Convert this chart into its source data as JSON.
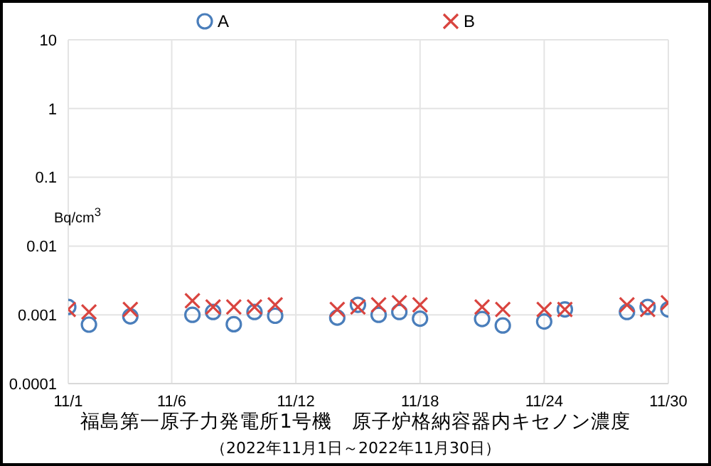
{
  "chart_data": {
    "type": "scatter",
    "title": "福島第一原子力発電所1号機　原子炉格納容器内キセノン濃度",
    "subtitle": "（2022年11月1日～2022年11月30日）",
    "ylabel": "Bq/cm$^{3}$",
    "x": [
      "2022-11-01",
      "2022-11-02",
      "2022-11-04",
      "2022-11-07",
      "2022-11-08",
      "2022-11-09",
      "2022-11-10",
      "2022-11-11",
      "2022-11-14",
      "2022-11-15",
      "2022-11-16",
      "2022-11-17",
      "2022-11-18",
      "2022-11-21",
      "2022-11-22",
      "2022-11-24",
      "2022-11-25",
      "2022-11-28",
      "2022-11-29",
      "2022-11-30"
    ],
    "series": [
      {
        "name": "A",
        "color": "#4a7ebb",
        "marker": "circle",
        "values": [
          0.0013,
          0.00072,
          0.00095,
          0.001,
          0.0011,
          0.00073,
          0.0011,
          0.00097,
          0.00091,
          0.0014,
          0.001,
          0.0011,
          0.00088,
          0.00087,
          0.0007,
          0.0008,
          0.0012,
          0.0011,
          0.0013,
          0.0012
        ]
      },
      {
        "name": "B",
        "color": "#d9443f",
        "marker": "cross",
        "values": [
          0.0012,
          0.0011,
          0.0012,
          0.0016,
          0.0013,
          0.0013,
          0.0013,
          0.0014,
          0.0012,
          0.0013,
          0.0014,
          0.0015,
          0.0014,
          0.0013,
          0.0012,
          0.0012,
          0.0012,
          0.0014,
          0.0012,
          0.0015
        ]
      }
    ],
    "log": "y",
    "ylim": [
      0.0001,
      10
    ],
    "yticks": [
      0.0001,
      0.001,
      0.01,
      0.1,
      1,
      10
    ],
    "xlim": [
      "2022-11-01",
      "2022-11-30"
    ],
    "xticks": [
      {
        "value": "2022-11-01",
        "label": "11/1"
      },
      {
        "value": "2022-11-06",
        "label": "11/6"
      },
      {
        "value": "2022-11-12",
        "label": "11/12"
      },
      {
        "value": "2022-11-18",
        "label": "11/18"
      },
      {
        "value": "2022-11-24",
        "label": "11/24"
      },
      {
        "value": "2022-11-30",
        "label": "11/30"
      }
    ],
    "grid": true,
    "legend": "top"
  }
}
